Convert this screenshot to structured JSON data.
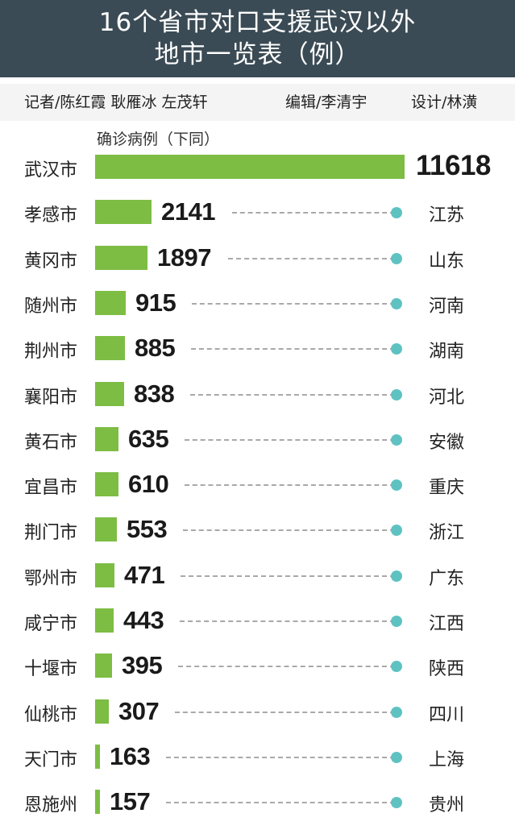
{
  "title": {
    "line1": "16个省市对口支援武汉以外",
    "line2": "地市一览表（例）"
  },
  "credits": {
    "reporters": "记者/陈红霞  耿雁冰  左茂轩",
    "editor": "编辑/李清宇",
    "designer": "设计/林潢"
  },
  "chart_data": {
    "type": "bar",
    "orientation": "horizontal",
    "unit_note": "确诊病例（下同）",
    "categories": [
      "武汉市",
      "孝感市",
      "黄冈市",
      "随州市",
      "荆州市",
      "襄阳市",
      "黄石市",
      "宜昌市",
      "荆门市",
      "鄂州市",
      "咸宁市",
      "十堰市",
      "仙桃市",
      "天门市",
      "恩施州"
    ],
    "values": [
      11618,
      2141,
      1897,
      915,
      885,
      838,
      635,
      610,
      553,
      471,
      443,
      395,
      307,
      163,
      157
    ],
    "value_labels": [
      "11618",
      "2141",
      "1897",
      "915",
      "885",
      "838",
      "635",
      "610",
      "553",
      "471",
      "443",
      "395",
      "307",
      "163",
      "157"
    ],
    "partner_provinces": [
      "",
      "江苏",
      "山东",
      "河南",
      "湖南",
      "河北",
      "安徽",
      "重庆",
      "浙江",
      "广东",
      "江西",
      "陕西",
      "四川",
      "上海",
      "贵州"
    ],
    "bar_color": "#7dbd44",
    "grid": false,
    "legend": "none"
  },
  "colors": {
    "title_band": "#3b4b55",
    "bar": "#7dbd44",
    "connector_dot": "#5fc2c2",
    "dash_line": "#a9a9a9"
  }
}
